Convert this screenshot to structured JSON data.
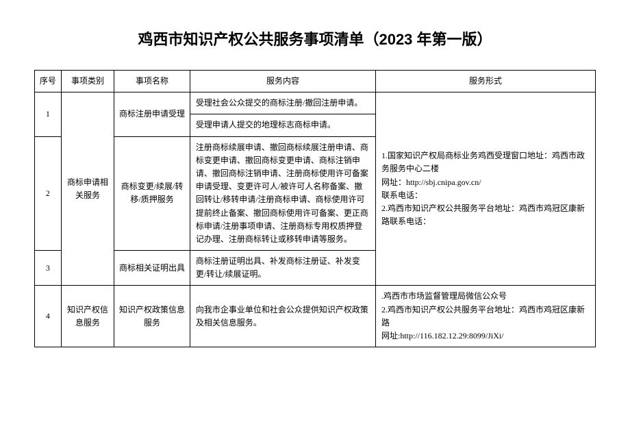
{
  "title": "鸡西市知识产权公共服务事项清单（2023 年第一版）",
  "headers": {
    "seq": "序号",
    "category": "事项类别",
    "name": "事项名称",
    "content": "服务内容",
    "form": "服务形式"
  },
  "rows": {
    "r1": {
      "seq": "1",
      "category": "商标申请相关服务",
      "name": "商标注册申请受理",
      "content1": "受理社会公众提交的商标注册/撤回注册申请。",
      "content2": "受理申请人提交的地理标志商标申请。",
      "form": "1.国家知识产权局商标业务鸡西受理窗口地址：鸡西市政务服务中心二楼\n网址：http://sbj.cnipa.gov.cn/\n联系电话：\n2.鸡西市知识产权公共服务平台地址：鸡西市鸡冠区康新路联系电话："
    },
    "r2": {
      "seq": "2",
      "name": "商标变更/续展/转移/质押服务",
      "content": "注册商标续展申请、撤回商标续展注册申请、商标变更申请、撤回商标变更申请、商标注销申请、撤回商标注销申请、注册商标使用许可备案申请受理、变更许可人/被许可人名称备案、撤回转让/移转申请/注册商标申请、商标使用许可提前终止备案、撤回商标使用许可备案、更正商标申请/注册事项申请、注册商标专用权质押登记办理、注册商标转让或移转申请等服务。"
    },
    "r3": {
      "seq": "3",
      "name": "商标相关证明出具",
      "content": "商标注册证明出具、补发商标注册证、补发变更/转让/续展证明。"
    },
    "r4": {
      "seq": "4",
      "category": "知识产权信息服务",
      "name": "知识产权政策信息服务",
      "content": "向我市企事业单位和社会公众提供知识产权政策及相关信息服务。",
      "form": "    .鸡西市市场监督管理局微信公众号\n2.鸡西市知识产权公共服务平台地址：鸡西市鸡冠区康新路\n网址:http://116.182.12.29:8099/JiXi/"
    }
  }
}
